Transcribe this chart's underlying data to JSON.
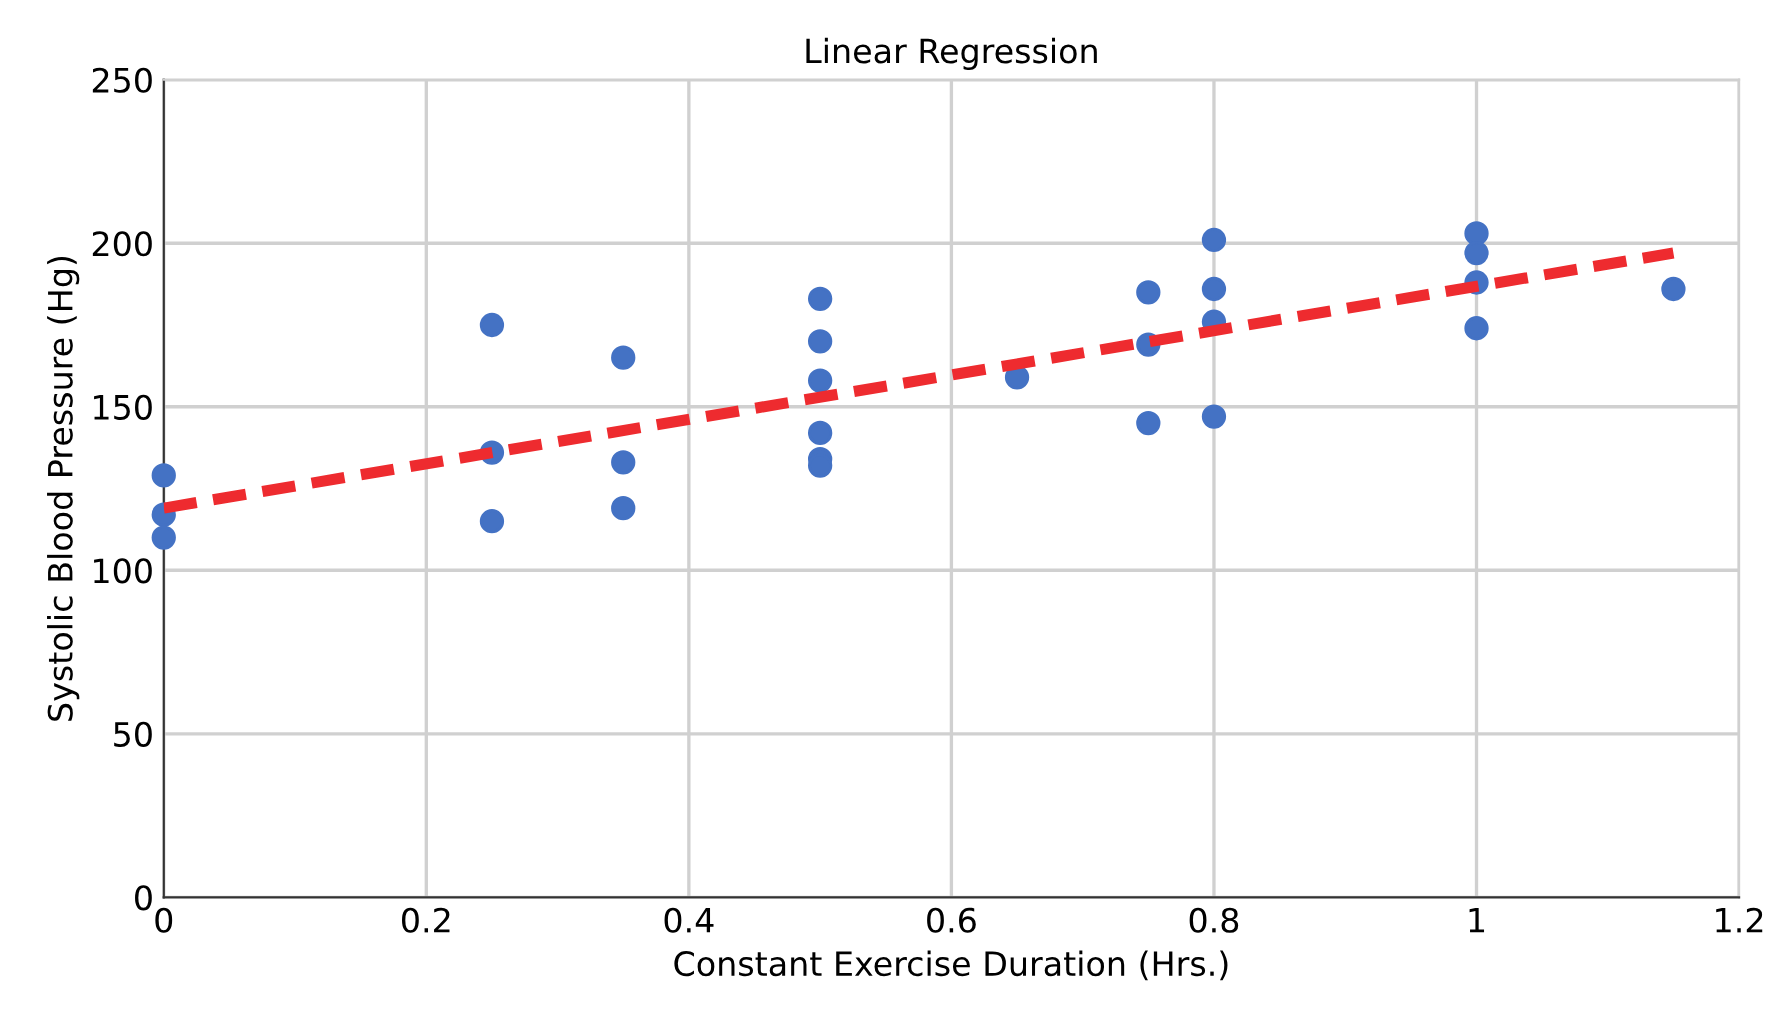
{
  "chart_data": {
    "type": "scatter",
    "title": "Linear Regression",
    "xlabel": "Constant Exercise Duration (Hrs.)",
    "ylabel": "Systolic Blood Pressure (Hg)",
    "xlim": [
      0,
      1.2
    ],
    "ylim": [
      0,
      250
    ],
    "xticks": [
      0,
      0.2,
      0.4,
      0.6,
      0.8,
      1,
      1.2
    ],
    "yticks": [
      0,
      50,
      100,
      150,
      200,
      250
    ],
    "grid": true,
    "series": [
      {
        "color": "#4472c4",
        "marker": "circle",
        "x": [
          0,
          0,
          0,
          0.25,
          0.25,
          0.25,
          0.35,
          0.35,
          0.35,
          0.5,
          0.5,
          0.5,
          0.5,
          0.5,
          0.5,
          0.65,
          0.75,
          0.75,
          0.75,
          0.8,
          0.8,
          0.8,
          0.8,
          1,
          1,
          1,
          1,
          1.15
        ],
        "values": [
          129,
          117,
          110,
          175,
          136,
          115,
          165,
          133,
          119,
          183,
          170,
          158,
          142,
          134,
          132,
          159,
          185,
          169,
          145,
          201,
          186,
          176,
          147,
          203,
          197,
          188,
          174,
          186
        ]
      },
      {
        "type": "line",
        "color": "#ee2b2f",
        "line_style": "dashed",
        "marker": "none",
        "x": [
          0,
          1.15
        ],
        "values": [
          119,
          197
        ]
      }
    ]
  }
}
